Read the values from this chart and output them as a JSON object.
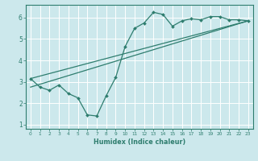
{
  "xlabel": "Humidex (Indice chaleur)",
  "ylabel": "",
  "bg_color": "#cce8ec",
  "line_color": "#2e7d6e",
  "grid_color": "#ffffff",
  "xlim": [
    -0.5,
    23.5
  ],
  "ylim": [
    0.8,
    6.6
  ],
  "xticks": [
    0,
    1,
    2,
    3,
    4,
    5,
    6,
    7,
    8,
    9,
    10,
    11,
    12,
    13,
    14,
    15,
    16,
    17,
    18,
    19,
    20,
    21,
    22,
    23
  ],
  "yticks": [
    1,
    2,
    3,
    4,
    5,
    6
  ],
  "curve1_x": [
    0,
    1,
    2,
    3,
    4,
    5,
    6,
    7,
    8,
    9,
    10,
    11,
    12,
    13,
    14,
    15,
    16,
    17,
    18,
    19,
    20,
    21,
    22,
    23
  ],
  "curve1_y": [
    3.15,
    2.75,
    2.6,
    2.85,
    2.45,
    2.25,
    1.45,
    1.4,
    2.35,
    3.2,
    4.65,
    5.5,
    5.75,
    6.25,
    6.15,
    5.6,
    5.85,
    5.95,
    5.9,
    6.05,
    6.05,
    5.9,
    5.9,
    5.85
  ],
  "curve2_x": [
    0,
    23
  ],
  "curve2_y": [
    3.15,
    5.85
  ],
  "curve3_x": [
    0,
    23
  ],
  "curve3_y": [
    2.75,
    5.85
  ]
}
